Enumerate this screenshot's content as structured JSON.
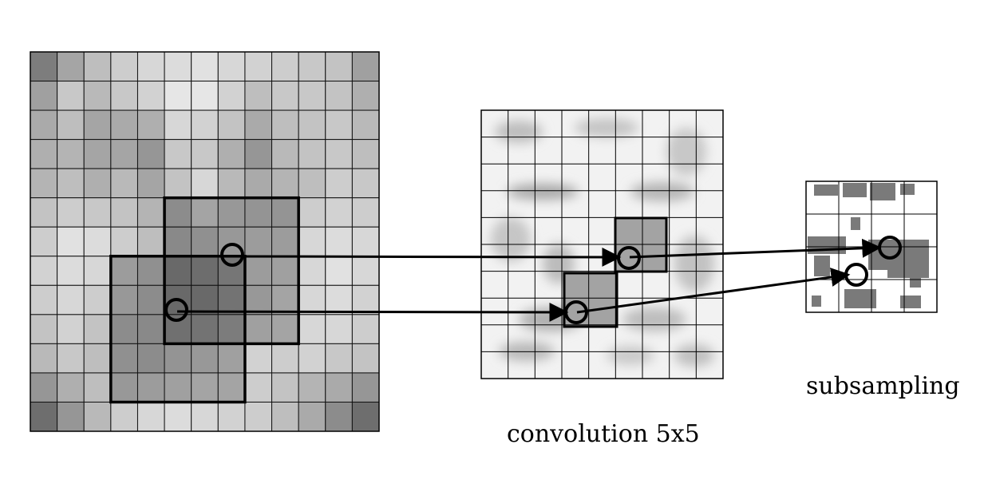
{
  "diagram": {
    "labels": {
      "convolution": "convolution 5x5",
      "subsampling": "subsampling"
    }
  }
}
